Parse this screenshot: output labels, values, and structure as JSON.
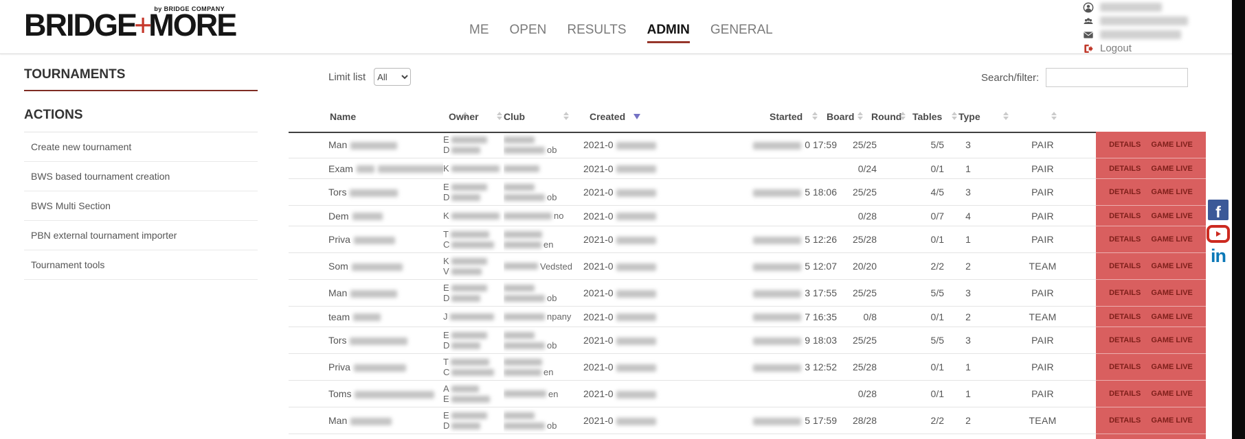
{
  "header": {
    "logo": {
      "part1": "BRIDGE",
      "plus": "+",
      "part2": "MORE",
      "byline": "by BRIDGE COMPANY"
    },
    "nav": [
      {
        "label": "ME",
        "active": false
      },
      {
        "label": "OPEN",
        "active": false
      },
      {
        "label": "RESULTS",
        "active": false
      },
      {
        "label": "ADMIN",
        "active": true
      },
      {
        "label": "GENERAL",
        "active": false
      }
    ],
    "user_menu": {
      "redacted_rows": [
        {
          "icon": "person-icon",
          "redact_width": 90
        },
        {
          "icon": "users-icon",
          "redact_width": 128
        },
        {
          "icon": "envelope-icon",
          "redact_width": 118
        }
      ],
      "logout_label": "Logout"
    }
  },
  "sidebar": {
    "title": "TOURNAMENTS",
    "section_title": "ACTIONS",
    "items": [
      "Create new tournament",
      "BWS based tournament creation",
      "BWS Multi Section",
      "PBN external tournament importer",
      "Tournament tools"
    ]
  },
  "toolbar": {
    "limit_label": "Limit list",
    "limit_value": "All",
    "search_label": "Search/filter:",
    "search_value": ""
  },
  "table": {
    "columns": [
      "Name",
      "Owner",
      "Club",
      "Created",
      "Started",
      "Board",
      "Round",
      "Tables",
      "Type"
    ],
    "sorted_column": "Created",
    "sort_direction": "desc",
    "row_actions": [
      "DETAILS",
      "GAME LIVE"
    ],
    "rows": [
      {
        "name_prefix": "Man",
        "name_redacts": [
          68
        ],
        "owner_lines": [
          {
            "p": "E",
            "r": 52
          },
          {
            "p": "D",
            "r": 42
          }
        ],
        "club_lines": [
          {
            "r": 45,
            "s": ""
          },
          {
            "r": 60,
            "s": "ob"
          }
        ],
        "created_prefix": "2021-0",
        "started_redact": 70,
        "started_text": "0 17:59",
        "board": "25/25",
        "round": "5/5",
        "tables": "3",
        "type": "PAIR"
      },
      {
        "name_prefix": "Exam",
        "name_redacts": [
          26,
          100
        ],
        "owner_lines": [
          {
            "p": "K",
            "r": 70
          }
        ],
        "club_lines": [
          {
            "r": 52,
            "s": ""
          }
        ],
        "created_prefix": "2021-0",
        "started_redact": 0,
        "started_text": "",
        "board": "0/24",
        "round": "0/1",
        "tables": "1",
        "type": "PAIR"
      },
      {
        "name_prefix": "Tors",
        "name_redacts": [
          70
        ],
        "owner_lines": [
          {
            "p": "E",
            "r": 52
          },
          {
            "p": "D",
            "r": 42
          }
        ],
        "club_lines": [
          {
            "r": 45,
            "s": ""
          },
          {
            "r": 60,
            "s": "ob"
          }
        ],
        "created_prefix": "2021-0",
        "started_redact": 70,
        "started_text": "5 18:06",
        "board": "25/25",
        "round": "4/5",
        "tables": "3",
        "type": "PAIR"
      },
      {
        "name_prefix": "Dem",
        "name_redacts": [
          44
        ],
        "owner_lines": [
          {
            "p": "K",
            "r": 70
          }
        ],
        "club_lines": [
          {
            "r": 70,
            "s": "no"
          }
        ],
        "created_prefix": "2021-0",
        "started_redact": 0,
        "started_text": "",
        "board": "0/28",
        "round": "0/7",
        "tables": "4",
        "type": "PAIR"
      },
      {
        "name_prefix": "Priva",
        "name_redacts": [
          60
        ],
        "owner_lines": [
          {
            "p": "T",
            "r": 56
          },
          {
            "p": "C",
            "r": 62
          }
        ],
        "club_lines": [
          {
            "r": 56,
            "s": ""
          },
          {
            "r": 55,
            "s": "en"
          }
        ],
        "created_prefix": "2021-0",
        "started_redact": 70,
        "started_text": "5 12:26",
        "board": "25/28",
        "round": "0/1",
        "tables": "1",
        "type": "PAIR"
      },
      {
        "name_prefix": "Som",
        "name_redacts": [
          74
        ],
        "owner_lines": [
          {
            "p": "K",
            "r": 52
          },
          {
            "p": "V",
            "r": 44
          }
        ],
        "club_lines": [
          {
            "r": 50,
            "s": "Vedsted"
          }
        ],
        "created_prefix": "2021-0",
        "started_redact": 70,
        "started_text": "5 12:07",
        "board": "20/20",
        "round": "2/2",
        "tables": "2",
        "type": "TEAM"
      },
      {
        "name_prefix": "Man",
        "name_redacts": [
          68
        ],
        "owner_lines": [
          {
            "p": "E",
            "r": 52
          },
          {
            "p": "D",
            "r": 42
          }
        ],
        "club_lines": [
          {
            "r": 45,
            "s": ""
          },
          {
            "r": 60,
            "s": "ob"
          }
        ],
        "created_prefix": "2021-0",
        "started_redact": 70,
        "started_text": "3 17:55",
        "board": "25/25",
        "round": "5/5",
        "tables": "3",
        "type": "PAIR"
      },
      {
        "name_prefix": "team",
        "name_redacts": [
          40
        ],
        "owner_lines": [
          {
            "p": "J",
            "r": 64
          }
        ],
        "club_lines": [
          {
            "r": 60,
            "s": "npany"
          }
        ],
        "created_prefix": "2021-0",
        "started_redact": 70,
        "started_text": "7 16:35",
        "board": "0/8",
        "round": "0/1",
        "tables": "2",
        "type": "TEAM"
      },
      {
        "name_prefix": "Tors",
        "name_redacts": [
          84
        ],
        "owner_lines": [
          {
            "p": "E",
            "r": 52
          },
          {
            "p": "D",
            "r": 42
          }
        ],
        "club_lines": [
          {
            "r": 45,
            "s": ""
          },
          {
            "r": 60,
            "s": "ob"
          }
        ],
        "created_prefix": "2021-0",
        "started_redact": 70,
        "started_text": "9 18:03",
        "board": "25/25",
        "round": "5/5",
        "tables": "3",
        "type": "PAIR"
      },
      {
        "name_prefix": "Priva",
        "name_redacts": [
          76
        ],
        "owner_lines": [
          {
            "p": "T",
            "r": 56
          },
          {
            "p": "C",
            "r": 62
          }
        ],
        "club_lines": [
          {
            "r": 56,
            "s": ""
          },
          {
            "r": 55,
            "s": "en"
          }
        ],
        "created_prefix": "2021-0",
        "started_redact": 70,
        "started_text": "3 12:52",
        "board": "25/28",
        "round": "0/1",
        "tables": "1",
        "type": "PAIR"
      },
      {
        "name_prefix": "Toms",
        "name_redacts": [
          116
        ],
        "owner_lines": [
          {
            "p": "A",
            "r": 40
          },
          {
            "p": "E",
            "r": 56
          }
        ],
        "club_lines": [
          {
            "r": 62,
            "s": "en"
          }
        ],
        "created_prefix": "2021-0",
        "started_redact": 0,
        "started_text": "",
        "board": "0/28",
        "round": "0/1",
        "tables": "1",
        "type": "PAIR"
      },
      {
        "name_prefix": "Man",
        "name_redacts": [
          60
        ],
        "owner_lines": [
          {
            "p": "E",
            "r": 52
          },
          {
            "p": "D",
            "r": 42
          }
        ],
        "club_lines": [
          {
            "r": 45,
            "s": ""
          },
          {
            "r": 60,
            "s": "ob"
          }
        ],
        "created_prefix": "2021-0",
        "started_redact": 70,
        "started_text": "5 17:59",
        "board": "28/28",
        "round": "2/2",
        "tables": "2",
        "type": "TEAM"
      }
    ]
  },
  "social": [
    {
      "name": "facebook",
      "glyph": "f"
    },
    {
      "name": "youtube",
      "glyph": ""
    },
    {
      "name": "linkedin",
      "glyph": "in"
    }
  ],
  "colors": {
    "accent_underline": "#96362a",
    "action_column_bg": "#d95f5f",
    "action_text": "#7e1f1a",
    "sort_active": "#7472c4",
    "logout_icon": "#c0392b",
    "facebook": "#3b5998",
    "youtube": "#cc2a20",
    "linkedin": "#0b78b7"
  }
}
